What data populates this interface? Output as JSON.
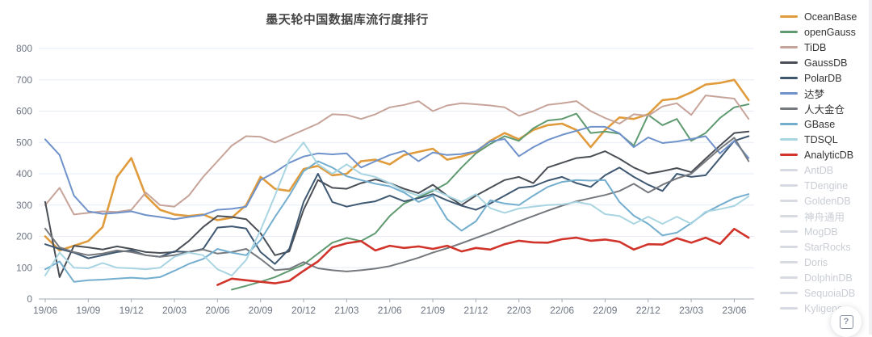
{
  "header": {
    "title": "墨天轮中国数据库流行度排行"
  },
  "help_button": {
    "label": "?",
    "icon": "boxed-question-mark-icon"
  },
  "chart_data": {
    "type": "line",
    "title": "墨天轮中国数据库流行度排行",
    "x": [
      "19/06",
      "19/07",
      "19/08",
      "19/09",
      "19/10",
      "19/11",
      "19/12",
      "20/01",
      "20/02",
      "20/03",
      "20/04",
      "20/05",
      "20/06",
      "20/07",
      "20/08",
      "20/09",
      "20/10",
      "20/11",
      "20/12",
      "21/01",
      "21/02",
      "21/03",
      "21/04",
      "21/05",
      "21/06",
      "21/07",
      "21/08",
      "21/09",
      "21/10",
      "21/11",
      "21/12",
      "22/01",
      "22/02",
      "22/03",
      "22/04",
      "22/05",
      "22/06",
      "22/07",
      "22/08",
      "22/09",
      "22/10",
      "22/11",
      "22/12",
      "23/01",
      "23/02",
      "23/03",
      "23/04",
      "23/05",
      "23/06",
      "23/07"
    ],
    "x_axis_tick_labels": [
      "19/06",
      "19/09",
      "19/12",
      "20/03",
      "20/06",
      "20/09",
      "20/12",
      "21/03",
      "21/06",
      "21/09",
      "21/12",
      "22/03",
      "22/06",
      "22/09",
      "22/12",
      "23/03",
      "23/06"
    ],
    "x_label_every": 3,
    "ylim": [
      0,
      800
    ],
    "y_ticks": [
      0,
      100,
      200,
      300,
      400,
      500,
      600,
      700,
      800
    ],
    "grid": true,
    "legend_position": "right",
    "styles": {
      "grid_color": "#E6EBF5",
      "axis_color": "#A2A8B5",
      "tick_label_color": "#6E7583",
      "active_legend_text_color": "#333333",
      "inactive_legend_text_color": "#C9CDD4",
      "inactive_swatch_color": "#D7DAE0"
    },
    "series": [
      {
        "name": "OceanBase",
        "color": "#E09C3C",
        "active": true,
        "line_width": 2.6,
        "values": [
          200,
          155,
          170,
          185,
          230,
          390,
          450,
          330,
          285,
          270,
          265,
          270,
          252,
          260,
          300,
          390,
          352,
          345,
          415,
          425,
          395,
          400,
          440,
          445,
          430,
          460,
          470,
          480,
          445,
          455,
          470,
          505,
          530,
          510,
          540,
          555,
          560,
          540,
          485,
          540,
          580,
          575,
          590,
          635,
          640,
          660,
          685,
          690,
          700,
          635
        ]
      },
      {
        "name": "openGauss",
        "color": "#609A70",
        "active": true,
        "line_width": 2,
        "values": [
          null,
          null,
          null,
          null,
          null,
          null,
          null,
          null,
          null,
          null,
          null,
          null,
          null,
          30,
          42,
          55,
          70,
          90,
          110,
          145,
          180,
          195,
          185,
          210,
          265,
          305,
          325,
          345,
          370,
          420,
          465,
          495,
          520,
          505,
          545,
          570,
          575,
          592,
          530,
          535,
          528,
          490,
          588,
          555,
          575,
          505,
          530,
          578,
          612,
          622
        ]
      },
      {
        "name": "TiDB",
        "color": "#C7A49A",
        "active": true,
        "line_width": 2,
        "values": [
          300,
          355,
          270,
          275,
          280,
          278,
          285,
          340,
          300,
          295,
          330,
          390,
          440,
          490,
          520,
          518,
          500,
          520,
          540,
          560,
          590,
          588,
          575,
          590,
          612,
          620,
          632,
          600,
          618,
          625,
          622,
          618,
          612,
          585,
          600,
          620,
          625,
          632,
          600,
          578,
          560,
          590,
          585,
          615,
          625,
          588,
          650,
          645,
          640,
          575
        ]
      },
      {
        "name": "GaussDB",
        "color": "#4A4E55",
        "active": true,
        "line_width": 2,
        "values": [
          310,
          70,
          170,
          165,
          158,
          168,
          160,
          150,
          147,
          150,
          185,
          230,
          265,
          262,
          255,
          210,
          140,
          152,
          285,
          380,
          355,
          352,
          370,
          382,
          370,
          352,
          338,
          365,
          330,
          300,
          330,
          355,
          380,
          390,
          370,
          420,
          435,
          450,
          455,
          472,
          448,
          420,
          400,
          408,
          418,
          405,
          448,
          490,
          530,
          535
        ]
      },
      {
        "name": "PolarDB",
        "color": "#3F5872",
        "active": true,
        "line_width": 2,
        "values": [
          175,
          160,
          148,
          130,
          140,
          150,
          155,
          140,
          135,
          152,
          150,
          160,
          228,
          232,
          225,
          150,
          112,
          160,
          310,
          400,
          310,
          295,
          305,
          312,
          330,
          312,
          322,
          335,
          315,
          298,
          285,
          305,
          330,
          355,
          360,
          378,
          390,
          370,
          358,
          395,
          420,
          390,
          365,
          345,
          400,
          390,
          395,
          450,
          505,
          520
        ]
      },
      {
        "name": "达梦",
        "color": "#6E92C9",
        "active": true,
        "line_width": 2,
        "values": [
          510,
          460,
          330,
          280,
          272,
          275,
          280,
          268,
          262,
          255,
          262,
          268,
          285,
          288,
          295,
          380,
          405,
          435,
          455,
          465,
          462,
          465,
          420,
          440,
          460,
          473,
          440,
          468,
          460,
          463,
          472,
          503,
          511,
          456,
          485,
          508,
          524,
          537,
          550,
          550,
          529,
          485,
          516,
          498,
          503,
          511,
          520,
          465,
          505,
          450
        ]
      },
      {
        "name": "人大金仓",
        "color": "#75787D",
        "active": true,
        "line_width": 2,
        "values": [
          225,
          165,
          150,
          140,
          145,
          155,
          150,
          140,
          135,
          140,
          150,
          158,
          145,
          150,
          160,
          128,
          92,
          96,
          118,
          98,
          92,
          88,
          92,
          97,
          105,
          118,
          132,
          148,
          162,
          178,
          195,
          212,
          230,
          248,
          265,
          282,
          298,
          312,
          322,
          332,
          345,
          368,
          340,
          365,
          385,
          400,
          440,
          480,
          515,
          440
        ]
      },
      {
        "name": "GBase",
        "color": "#74AECE",
        "active": true,
        "line_width": 2,
        "values": [
          95,
          120,
          55,
          60,
          62,
          65,
          68,
          65,
          70,
          90,
          112,
          128,
          160,
          148,
          140,
          188,
          262,
          330,
          408,
          440,
          420,
          392,
          380,
          368,
          360,
          340,
          310,
          330,
          255,
          218,
          248,
          315,
          305,
          300,
          330,
          358,
          374,
          380,
          378,
          380,
          310,
          266,
          240,
          203,
          212,
          242,
          276,
          300,
          322,
          335
        ]
      },
      {
        "name": "TDSQL",
        "color": "#A9D5E2",
        "active": true,
        "line_width": 2,
        "values": [
          75,
          148,
          100,
          98,
          115,
          100,
          98,
          95,
          100,
          135,
          148,
          140,
          95,
          75,
          125,
          220,
          330,
          445,
          500,
          430,
          400,
          430,
          400,
          390,
          370,
          345,
          330,
          350,
          330,
          310,
          335,
          290,
          275,
          289,
          295,
          300,
          302,
          310,
          302,
          271,
          265,
          240,
          263,
          240,
          263,
          240,
          279,
          287,
          297,
          328
        ]
      },
      {
        "name": "AnalyticDB",
        "color": "#D1342B",
        "active": true,
        "line_width": 2.6,
        "values": [
          null,
          null,
          null,
          null,
          null,
          null,
          null,
          null,
          null,
          null,
          null,
          null,
          45,
          65,
          60,
          55,
          50,
          58,
          90,
          120,
          165,
          178,
          185,
          155,
          170,
          163,
          168,
          160,
          170,
          152,
          163,
          158,
          175,
          186,
          181,
          180,
          191,
          196,
          186,
          190,
          183,
          158,
          175,
          174,
          194,
          180,
          196,
          176,
          224,
          196
        ]
      },
      {
        "name": "AntDB",
        "color": null,
        "active": false,
        "values": null
      },
      {
        "name": "TDengine",
        "color": null,
        "active": false,
        "values": null
      },
      {
        "name": "GoldenDB",
        "color": null,
        "active": false,
        "values": null
      },
      {
        "name": "神舟通用",
        "color": null,
        "active": false,
        "values": null
      },
      {
        "name": "MogDB",
        "color": null,
        "active": false,
        "values": null
      },
      {
        "name": "StarRocks",
        "color": null,
        "active": false,
        "values": null
      },
      {
        "name": "Doris",
        "color": null,
        "active": false,
        "values": null
      },
      {
        "name": "DolphinDB",
        "color": null,
        "active": false,
        "values": null
      },
      {
        "name": "SequoiaDB",
        "color": null,
        "active": false,
        "values": null
      },
      {
        "name": "Kyligence",
        "color": null,
        "active": false,
        "values": null
      }
    ]
  }
}
